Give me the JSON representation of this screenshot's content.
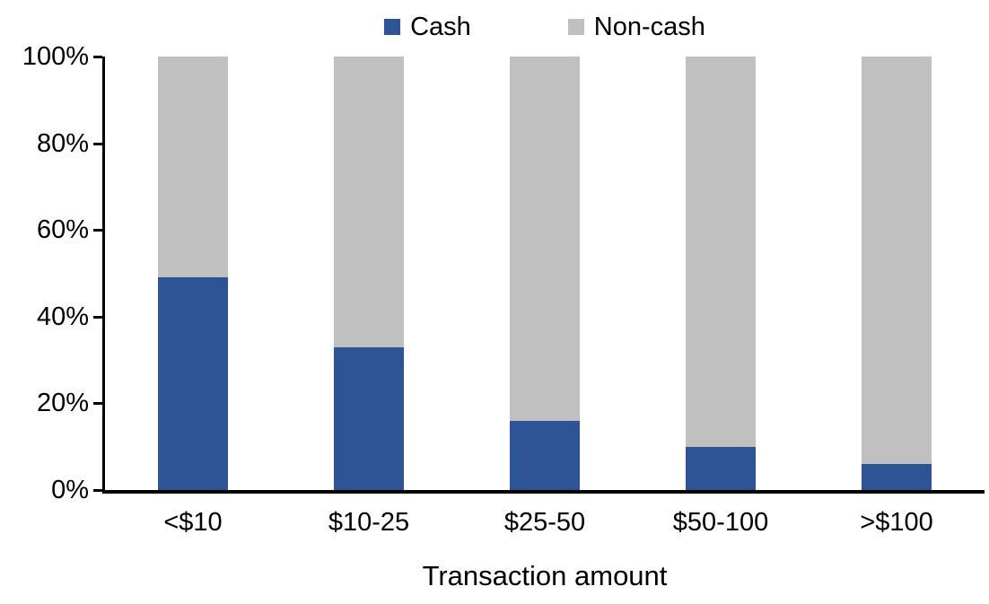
{
  "chart_data": {
    "type": "bar",
    "stacked": true,
    "percent_stacked": true,
    "title": "",
    "xlabel": "Transaction amount",
    "ylabel": "",
    "categories": [
      "<$10",
      "$10-25",
      "$25-50",
      "$50-100",
      ">$100"
    ],
    "series": [
      {
        "name": "Cash",
        "color": "#2F5496",
        "values": [
          49,
          33,
          16,
          10,
          6
        ]
      },
      {
        "name": "Non-cash",
        "color": "#C0C0C0",
        "values": [
          51,
          67,
          84,
          90,
          94
        ]
      }
    ],
    "ylim": [
      0,
      100
    ],
    "y_ticks": [
      0,
      20,
      40,
      60,
      80,
      100
    ],
    "y_tick_suffix": "%",
    "legend_position": "top",
    "grid": false,
    "axis_color": "#000000"
  }
}
